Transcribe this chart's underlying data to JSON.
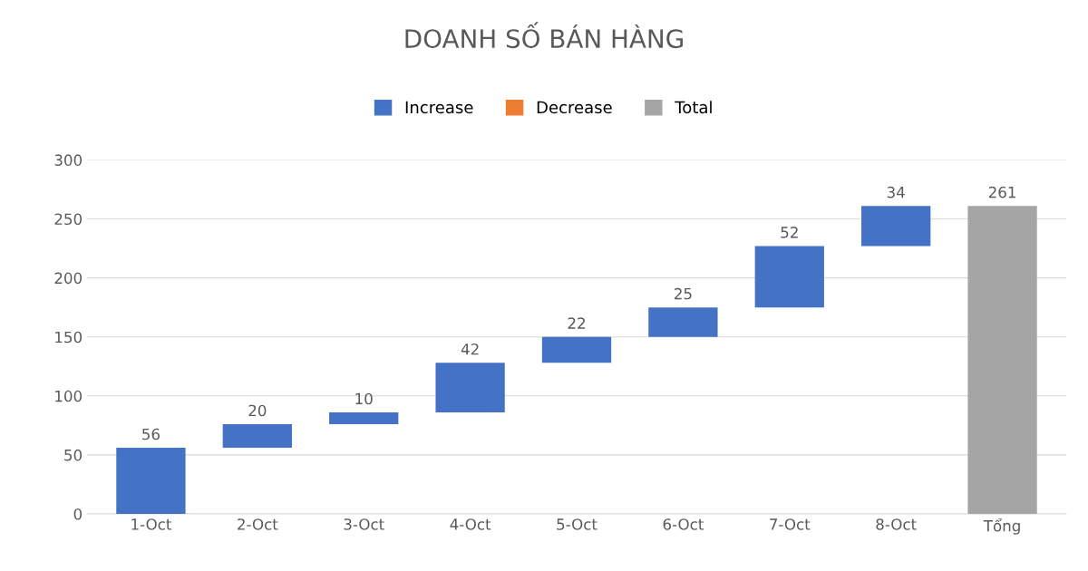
{
  "chart_data": {
    "type": "bar",
    "title": "DOANH SỐ BÁN HÀNG",
    "categories": [
      "1-Oct",
      "2-Oct",
      "3-Oct",
      "4-Oct",
      "5-Oct",
      "6-Oct",
      "7-Oct",
      "8-Oct",
      "Tổng"
    ],
    "series": [
      {
        "name": "Increase",
        "color": "#4472c4",
        "values": [
          56,
          20,
          10,
          42,
          22,
          25,
          52,
          34,
          null
        ],
        "base": [
          0,
          56,
          76,
          86,
          128,
          150,
          175,
          227,
          null
        ]
      },
      {
        "name": "Decrease",
        "color": "#ed7d31",
        "values": [
          null,
          null,
          null,
          null,
          null,
          null,
          null,
          null,
          null
        ]
      },
      {
        "name": "Total",
        "color": "#a5a5a5",
        "values": [
          null,
          null,
          null,
          null,
          null,
          null,
          null,
          null,
          261
        ]
      }
    ],
    "ylim": [
      0,
      300
    ],
    "yticks": [
      0,
      50,
      100,
      150,
      200,
      250,
      300
    ],
    "grid": "y",
    "legend": "top",
    "data_labels": true
  }
}
